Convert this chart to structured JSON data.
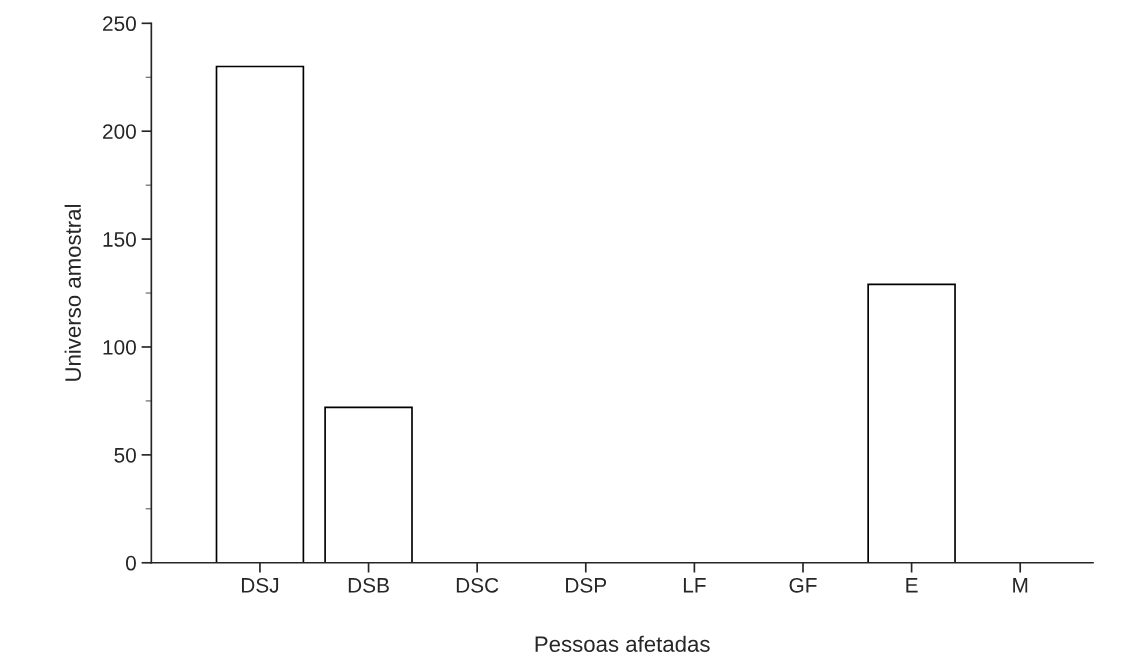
{
  "chart_data": {
    "type": "bar",
    "xlabel": "Pessoas afetadas",
    "ylabel": "Universo amostral",
    "categories": [
      "DSJ",
      "DSB",
      "DSC",
      "DSP",
      "LF",
      "GF",
      "E",
      "M"
    ],
    "values": [
      230,
      72,
      0,
      0,
      0,
      0,
      129,
      0
    ],
    "color": "#ffffff",
    "ylim": [
      0,
      250
    ],
    "yticks": [
      0,
      50,
      100,
      150,
      200,
      250
    ],
    "grid": false
  }
}
